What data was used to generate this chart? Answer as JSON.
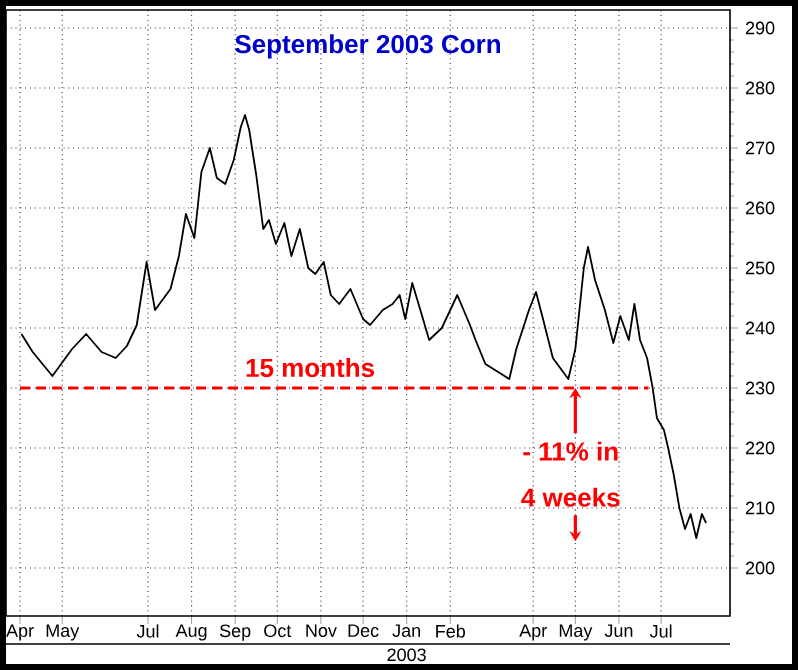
{
  "chart_data": {
    "type": "line",
    "title": "September 2003 Corn",
    "xlim": [
      "2002-03-22",
      "2003-08-19"
    ],
    "ylim": [
      192,
      293
    ],
    "xticks": [
      {
        "value": "2002-04-01",
        "label": "Apr"
      },
      {
        "value": "2002-05-01",
        "label": "May"
      },
      {
        "value": "2002-07-01",
        "label": "Jul"
      },
      {
        "value": "2002-08-01",
        "label": "Aug"
      },
      {
        "value": "2002-09-01",
        "label": "Sep"
      },
      {
        "value": "2002-10-01",
        "label": "Oct"
      },
      {
        "value": "2002-11-01",
        "label": "Nov"
      },
      {
        "value": "2002-12-01",
        "label": "Dec"
      },
      {
        "value": "2003-01-01",
        "label": "Jan"
      },
      {
        "value": "2003-02-01",
        "label": "Feb"
      },
      {
        "value": "2003-04-01",
        "label": "Apr"
      },
      {
        "value": "2003-05-01",
        "label": "May"
      },
      {
        "value": "2003-06-01",
        "label": "Jun"
      },
      {
        "value": "2003-07-01",
        "label": "Jul"
      }
    ],
    "yticks": [
      200,
      210,
      220,
      230,
      240,
      250,
      260,
      270,
      280,
      290
    ],
    "grid": true,
    "series": [
      {
        "color": "#000000",
        "x": [
          "2002-04-02",
          "2002-04-10",
          "2002-04-24",
          "2002-05-08",
          "2002-05-18",
          "2002-05-29",
          "2002-06-08",
          "2002-06-16",
          "2002-06-23",
          "2002-06-30",
          "2002-07-06",
          "2002-07-17",
          "2002-07-23",
          "2002-07-28",
          "2002-08-03",
          "2002-08-08",
          "2002-08-14",
          "2002-08-19",
          "2002-08-25",
          "2002-08-31",
          "2002-09-05",
          "2002-09-08",
          "2002-09-11",
          "2002-09-16",
          "2002-09-21",
          "2002-09-25",
          "2002-09-30",
          "2002-10-06",
          "2002-10-11",
          "2002-10-17",
          "2002-10-23",
          "2002-10-28",
          "2002-11-03",
          "2002-11-08",
          "2002-11-14",
          "2002-11-22",
          "2002-12-01",
          "2002-12-06",
          "2002-12-15",
          "2002-12-22",
          "2002-12-27",
          "2002-12-31",
          "2003-01-05",
          "2003-01-12",
          "2003-01-17",
          "2003-01-26",
          "2003-02-06",
          "2003-02-15",
          "2003-02-19",
          "2003-02-26",
          "2003-03-15",
          "2003-03-20",
          "2003-03-29",
          "2003-04-03",
          "2003-04-08",
          "2003-04-15",
          "2003-04-26",
          "2003-05-01",
          "2003-05-07",
          "2003-05-10",
          "2003-05-15",
          "2003-05-22",
          "2003-05-28",
          "2003-06-02",
          "2003-06-08",
          "2003-06-12",
          "2003-06-16",
          "2003-06-21",
          "2003-06-25",
          "2003-06-28",
          "2003-07-03",
          "2003-07-06",
          "2003-07-10",
          "2003-07-14",
          "2003-07-18",
          "2003-07-22",
          "2003-07-26",
          "2003-07-30",
          "2003-08-02"
        ],
        "values": [
          239,
          236,
          232,
          236.5,
          239,
          236,
          235,
          237,
          240.5,
          251,
          243,
          246.5,
          252,
          259,
          255,
          266,
          270,
          265,
          264,
          268,
          273.5,
          275.5,
          273,
          265.5,
          256.5,
          258,
          254,
          257.5,
          252,
          256.5,
          250,
          249,
          251,
          245.5,
          244,
          246.5,
          241.5,
          240.5,
          243,
          244,
          245.5,
          241.5,
          247.5,
          242,
          238,
          240,
          245.5,
          240.5,
          238,
          234,
          231.5,
          236.5,
          243,
          246,
          241.5,
          235,
          231.5,
          236.5,
          250,
          253.5,
          248,
          243,
          237.5,
          242,
          238,
          244,
          238,
          235,
          230,
          225,
          223,
          220,
          215.5,
          210,
          206.5,
          209,
          205,
          209,
          207.5
        ]
      },
      {
        "color": "#ff0000",
        "line_style": "dashed",
        "x": [
          "2002-04-01",
          "2003-06-22"
        ],
        "values": [
          230,
          230
        ]
      }
    ],
    "annotations": [
      "15 months",
      {
        "text": "- 11% in",
        "x": "2003-05-01",
        "y": 230
      },
      "4 weeks",
      "2003"
    ]
  }
}
